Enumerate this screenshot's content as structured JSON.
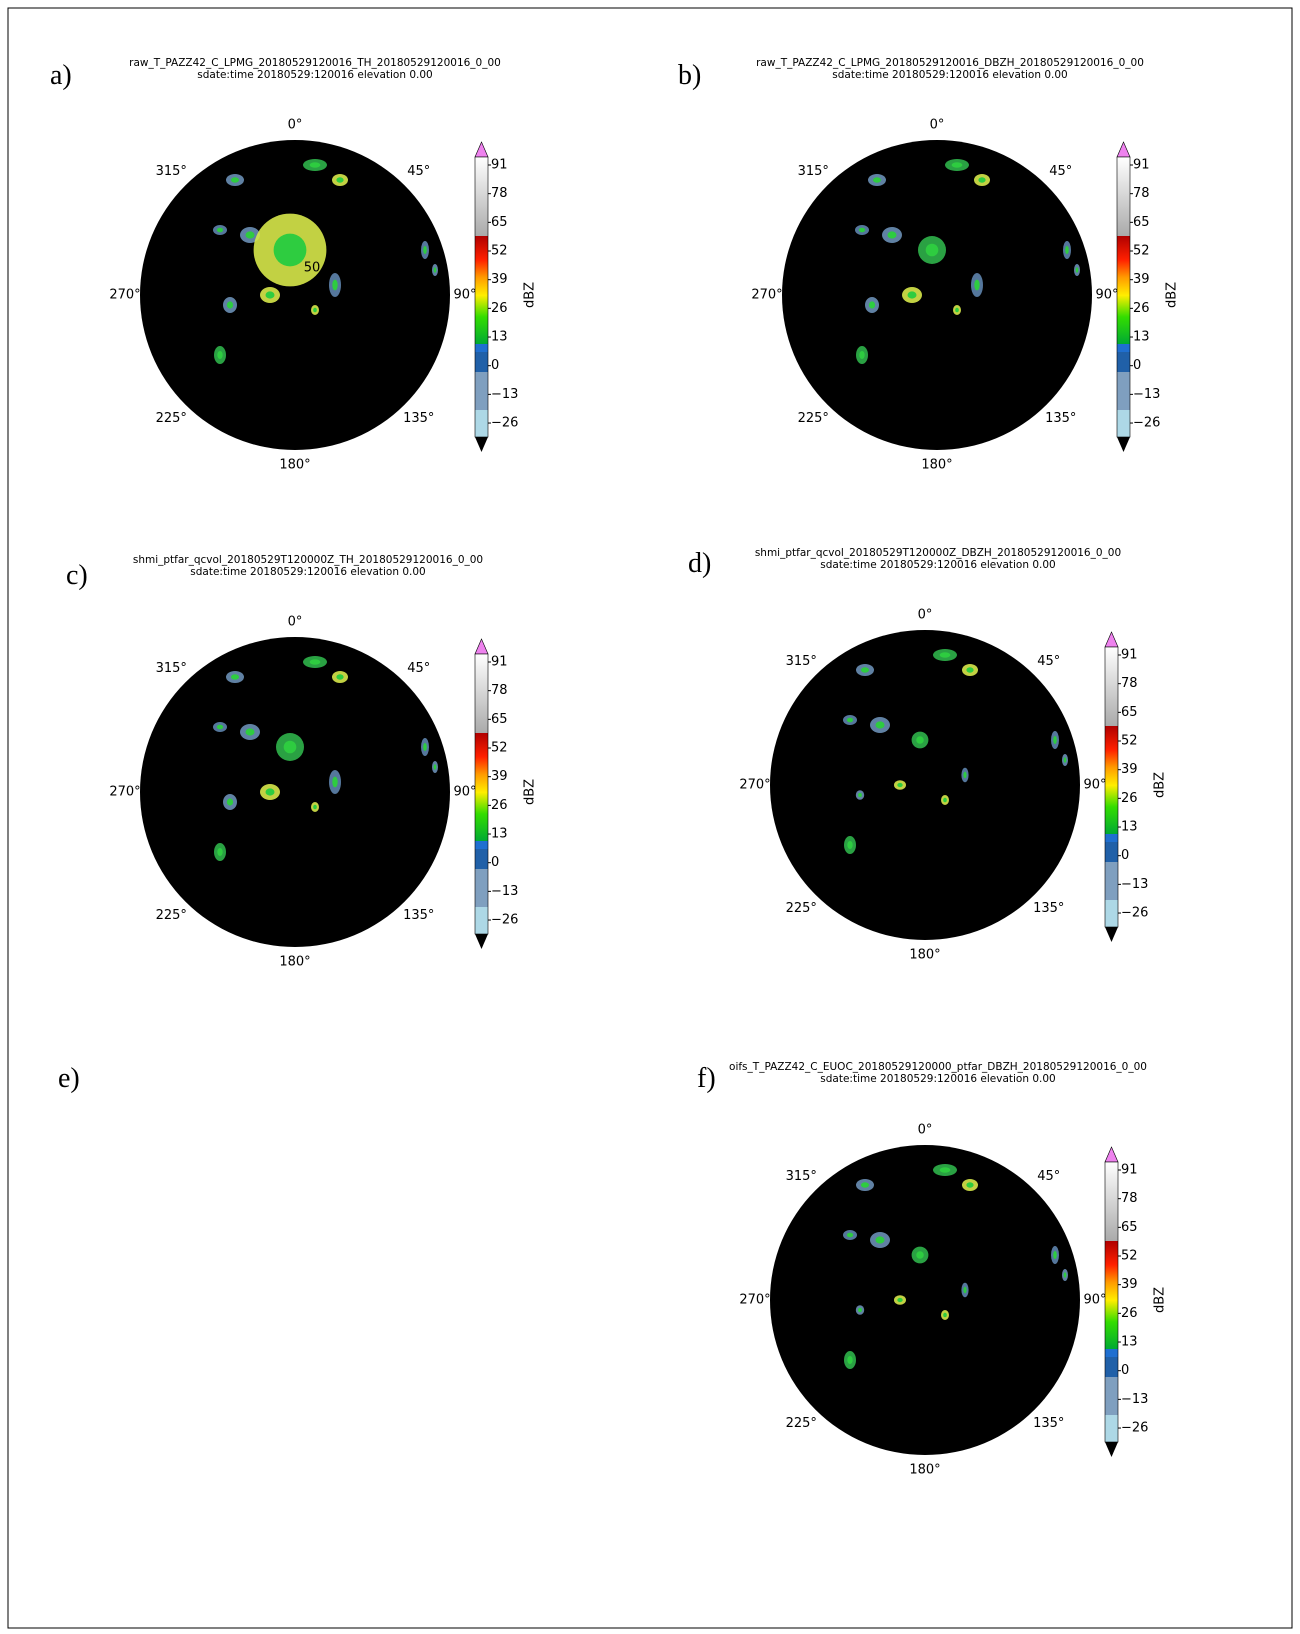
{
  "panels": [
    {
      "label": "a)",
      "title": "raw_T_PAZZ42_C_LPMG_20180529120016_TH_20180529120016_0_00",
      "subtitle": "sdate:time 20180529:120016 elevation 0.00",
      "range_label": "50",
      "angle_labels": [
        "0°",
        "45°",
        "90°",
        "135°",
        "180°",
        "225°",
        "270°",
        "315°"
      ],
      "colorbar": {
        "ticks": [
          "91",
          "78",
          "65",
          "52",
          "39",
          "26",
          "13",
          "0",
          "−13",
          "−26"
        ],
        "label": "dBZ"
      }
    },
    {
      "label": "b)",
      "title": "raw_T_PAZZ42_C_LPMG_20180529120016_DBZH_20180529120016_0_00",
      "subtitle": "sdate:time 20180529:120016 elevation 0.00",
      "angle_labels": [
        "0°",
        "45°",
        "90°",
        "135°",
        "180°",
        "225°",
        "270°",
        "315°"
      ],
      "colorbar": {
        "ticks": [
          "91",
          "78",
          "65",
          "52",
          "39",
          "26",
          "13",
          "0",
          "−13",
          "−26"
        ],
        "label": "dBZ"
      }
    },
    {
      "label": "c)",
      "title": "shmi_ptfar_qcvol_20180529T120000Z_TH_20180529120016_0_00",
      "subtitle": "sdate:time 20180529:120016 elevation 0.00",
      "angle_labels": [
        "0°",
        "45°",
        "90°",
        "135°",
        "180°",
        "225°",
        "270°",
        "315°"
      ],
      "colorbar": {
        "ticks": [
          "91",
          "78",
          "65",
          "52",
          "39",
          "26",
          "13",
          "0",
          "−13",
          "−26"
        ],
        "label": "dBZ"
      }
    },
    {
      "label": "d)",
      "title": "shmi_ptfar_qcvol_20180529T120000Z_DBZH_20180529120016_0_00",
      "subtitle": "sdate:time 20180529:120016 elevation 0.00",
      "angle_labels": [
        "0°",
        "45°",
        "90°",
        "135°",
        "180°",
        "225°",
        "270°",
        "315°"
      ],
      "colorbar": {
        "ticks": [
          "91",
          "78",
          "65",
          "52",
          "39",
          "26",
          "13",
          "0",
          "−13",
          "−26"
        ],
        "label": "dBZ"
      }
    },
    {
      "label": "e)"
    },
    {
      "label": "f)",
      "title": "oifs_T_PAZZ42_C_EUOC_20180529120000_ptfar_DBZH_20180529120016_0_00",
      "subtitle": "sdate:time 20180529:120016 elevation 0.00",
      "angle_labels": [
        "0°",
        "45°",
        "90°",
        "135°",
        "180°",
        "225°",
        "270°",
        "315°"
      ],
      "colorbar": {
        "ticks": [
          "91",
          "78",
          "65",
          "52",
          "39",
          "26",
          "13",
          "0",
          "−13",
          "−26"
        ],
        "label": "dBZ"
      }
    }
  ]
}
